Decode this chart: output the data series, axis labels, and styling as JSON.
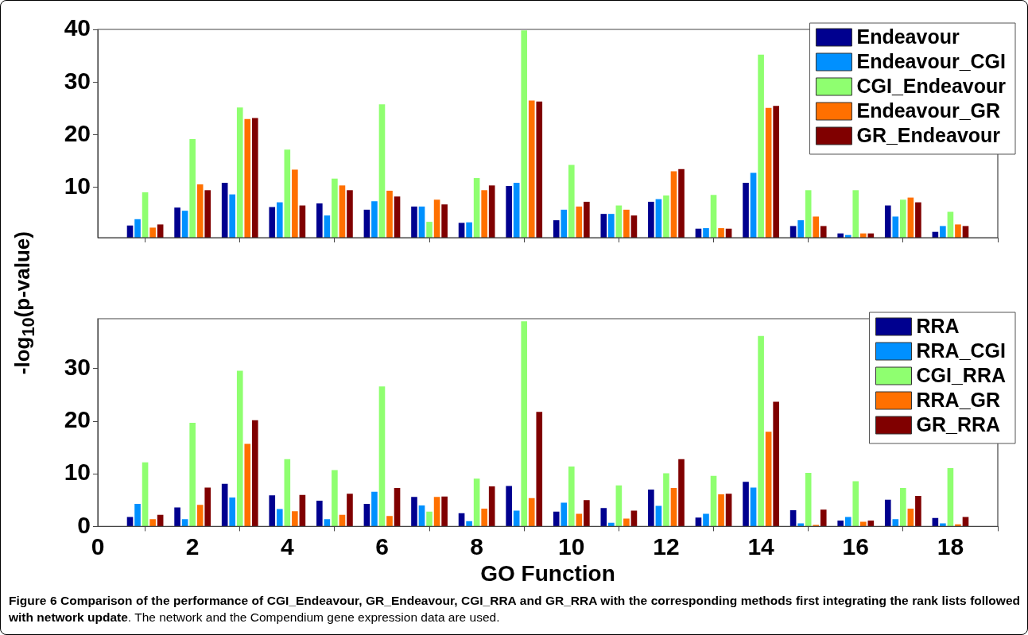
{
  "chart_data": [
    {
      "type": "bar",
      "ylabel": "-log$_{10}$(p-value)",
      "x": [
        1,
        2,
        3,
        4,
        5,
        6,
        7,
        8,
        9,
        10,
        11,
        12,
        13,
        14,
        15,
        16,
        17,
        18
      ],
      "xlim": [
        0,
        19
      ],
      "xticks": [
        0,
        2,
        4,
        6,
        8,
        10,
        12,
        14,
        16,
        18
      ],
      "ylim": [
        0.5,
        40
      ],
      "yticks": [
        10,
        20,
        30,
        40
      ],
      "tick_labels": "y",
      "grid": false,
      "legend": "top right",
      "series": [
        {
          "name": "Endeavour",
          "color": "#00008f",
          "values": [
            2.8,
            6.2,
            10.9,
            6.3,
            7.0,
            5.8,
            6.4,
            3.3,
            10.3,
            3.8,
            5.0,
            7.3,
            2.2,
            10.9,
            2.7,
            1.3,
            6.6,
            1.6
          ]
        },
        {
          "name": "Endeavour_CGI",
          "color": "#0090ff",
          "values": [
            4.0,
            5.6,
            8.7,
            7.2,
            4.7,
            7.4,
            6.4,
            3.4,
            10.9,
            5.8,
            5.0,
            7.8,
            2.3,
            12.8,
            3.8,
            1.0,
            4.5,
            2.7
          ]
        },
        {
          "name": "CGI_Endeavour",
          "color": "#8fff70",
          "values": [
            9.1,
            19.2,
            25.2,
            17.2,
            11.7,
            25.8,
            3.5,
            11.8,
            39.8,
            14.3,
            6.6,
            8.5,
            8.6,
            35.2,
            9.5,
            9.5,
            7.7,
            5.4
          ]
        },
        {
          "name": "Endeavour_GR",
          "color": "#ff7000",
          "values": [
            2.4,
            10.6,
            23.0,
            13.4,
            10.4,
            9.4,
            7.7,
            9.5,
            26.5,
            6.4,
            5.8,
            13.1,
            2.3,
            25.1,
            4.5,
            1.3,
            8.1,
            3.0
          ]
        },
        {
          "name": "GR_Endeavour",
          "color": "#800000",
          "values": [
            3.0,
            9.5,
            23.2,
            6.6,
            9.5,
            8.3,
            6.8,
            10.4,
            26.3,
            7.3,
            4.7,
            13.5,
            2.2,
            25.5,
            2.7,
            1.3,
            7.2,
            2.7
          ]
        }
      ]
    },
    {
      "type": "bar",
      "xlabel": "GO Function",
      "x": [
        1,
        2,
        3,
        4,
        5,
        6,
        7,
        8,
        9,
        10,
        11,
        12,
        13,
        14,
        15,
        16,
        17,
        18
      ],
      "xlim": [
        0,
        19
      ],
      "xticks": [
        0,
        2,
        4,
        6,
        8,
        10,
        12,
        14,
        16,
        18
      ],
      "ylim": [
        0,
        39.5
      ],
      "yticks": [
        0,
        10,
        20,
        30
      ],
      "grid": false,
      "legend": "top right",
      "annotations": [
        "Figure 6 Comparison of the performance of CGI_Endeavour, GR_Endeavour, CGI_RRA and GR_RRA with the corresponding methods first integrating the rank lists followed with network update",
        ". The network and the Compendium gene expression data are used."
      ],
      "series": [
        {
          "name": "RRA",
          "color": "#00008f",
          "values": [
            1.8,
            3.6,
            8.1,
            5.9,
            4.9,
            4.3,
            5.6,
            2.5,
            7.7,
            2.8,
            3.5,
            7.0,
            1.7,
            8.5,
            3.1,
            1.1,
            5.1,
            1.6
          ]
        },
        {
          "name": "RRA_CGI",
          "color": "#0090ff",
          "values": [
            4.3,
            1.4,
            5.5,
            3.3,
            1.4,
            6.6,
            4.0,
            1.0,
            3.0,
            4.5,
            0.7,
            3.9,
            2.4,
            7.4,
            0.6,
            1.8,
            1.4,
            0.6
          ]
        },
        {
          "name": "CGI_RRA",
          "color": "#8fff70",
          "values": [
            12.2,
            19.7,
            29.6,
            12.8,
            10.7,
            26.6,
            2.8,
            9.1,
            39.0,
            11.4,
            7.8,
            10.1,
            9.6,
            36.2,
            10.2,
            8.6,
            7.3,
            11.1
          ]
        },
        {
          "name": "RRA_GR",
          "color": "#ff7000",
          "values": [
            1.4,
            4.1,
            15.7,
            2.9,
            2.2,
            2.0,
            5.6,
            3.4,
            5.4,
            2.4,
            1.5,
            7.3,
            6.1,
            18.0,
            0.3,
            0.9,
            3.4,
            0.4
          ]
        },
        {
          "name": "GR_RRA",
          "color": "#800000",
          "values": [
            2.2,
            7.4,
            20.2,
            6.0,
            6.2,
            7.3,
            5.7,
            7.6,
            21.8,
            5.0,
            3.0,
            12.8,
            6.2,
            23.7,
            3.2,
            1.1,
            5.8,
            1.8
          ]
        }
      ]
    }
  ]
}
